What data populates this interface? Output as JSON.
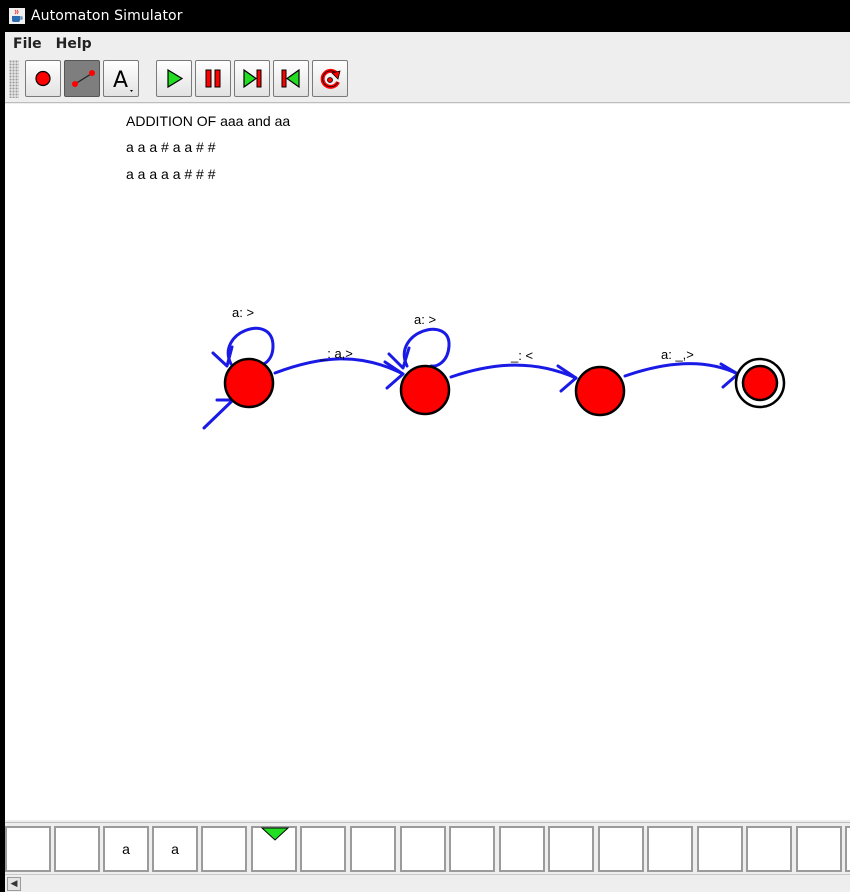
{
  "window": {
    "title": "Automaton Simulator"
  },
  "menu": {
    "items": [
      "File",
      "Help"
    ]
  },
  "toolbar": {
    "buttons": [
      {
        "name": "add-state-tool",
        "icon": "red-dot-icon",
        "pressed": false
      },
      {
        "name": "add-transition-tool",
        "icon": "transition-arrow-icon",
        "pressed": true
      },
      {
        "name": "add-text-tool",
        "icon": "text-a-icon",
        "pressed": false,
        "label": "A"
      },
      {
        "name": "run",
        "icon": "play-icon"
      },
      {
        "name": "pause",
        "icon": "pause-icon"
      },
      {
        "name": "step-forward",
        "icon": "step-forward-icon"
      },
      {
        "name": "step-back",
        "icon": "step-back-icon"
      },
      {
        "name": "reset",
        "icon": "reset-icon"
      }
    ]
  },
  "annotations": [
    "ADDITION OF aaa and aa",
    "a a a # a a # #",
    "a a a a a # # #"
  ],
  "automaton": {
    "states": [
      {
        "id": "q0",
        "initial": true,
        "accepting": false
      },
      {
        "id": "q1",
        "initial": false,
        "accepting": false
      },
      {
        "id": "q2",
        "initial": false,
        "accepting": false
      },
      {
        "id": "q3",
        "initial": false,
        "accepting": true
      }
    ],
    "transitions": [
      {
        "from": "q0",
        "to": "q0",
        "label": "a: >"
      },
      {
        "from": "q0",
        "to": "q1",
        "label": "_: a,>"
      },
      {
        "from": "q1",
        "to": "q1",
        "label": "a: >"
      },
      {
        "from": "q1",
        "to": "q2",
        "label": "_: <"
      },
      {
        "from": "q2",
        "to": "q3",
        "label": "a: _,>"
      }
    ]
  },
  "tape": {
    "cells": [
      "",
      "",
      "a",
      "a",
      "",
      "",
      "",
      "",
      "",
      "",
      "",
      "",
      "",
      "",
      "",
      "",
      "",
      ""
    ],
    "head_index": 5
  },
  "colors": {
    "state_fill": "#ff0000",
    "edge": "#1a1ae6",
    "head": "#22dd22"
  }
}
